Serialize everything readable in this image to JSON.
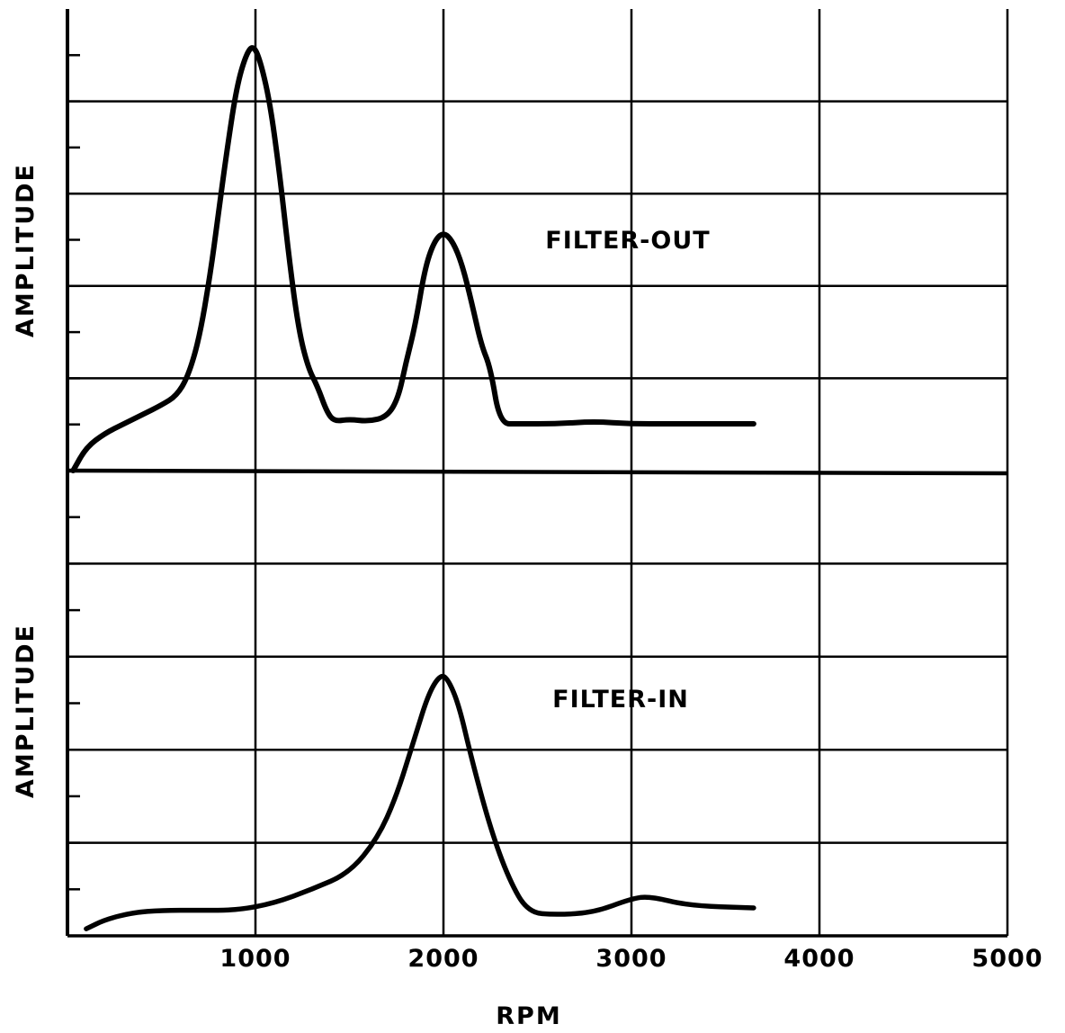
{
  "chart_data": [
    {
      "type": "line",
      "panel": "top",
      "title": "",
      "xlabel": "RPM",
      "ylabel": "AMPLITUDE",
      "xlim": [
        0,
        5000
      ],
      "ylim": [
        0,
        9
      ],
      "grid": true,
      "x_ticks": [
        1000,
        2000,
        3000,
        4000,
        5000
      ],
      "annotation": {
        "text": "FILTER-OUT",
        "x": 2800,
        "y": 5.1
      },
      "series": [
        {
          "name": "",
          "x": [
            30,
            100,
            200,
            300,
            400,
            500,
            580,
            640,
            700,
            760,
            800,
            850,
            900,
            950,
            990,
            1030,
            1080,
            1130,
            1180,
            1230,
            1280,
            1330,
            1380,
            1420,
            1500,
            1600,
            1700,
            1760,
            1800,
            1850,
            1900,
            1950,
            2000,
            2050,
            2100,
            2150,
            2200,
            2250,
            2300,
            2400,
            2600,
            2800,
            3000,
            3200,
            3400,
            3650
          ],
          "y": [
            0.0,
            0.5,
            0.8,
            1.0,
            1.2,
            1.4,
            1.6,
            2.0,
            2.8,
            4.2,
            5.4,
            6.9,
            8.2,
            8.9,
            9.1,
            8.7,
            7.8,
            6.3,
            4.5,
            3.0,
            2.2,
            1.8,
            1.25,
            1.05,
            1.1,
            1.05,
            1.15,
            1.55,
            2.3,
            3.1,
            4.3,
            4.9,
            5.1,
            4.9,
            4.4,
            3.6,
            2.7,
            2.2,
            1.0,
            1.0,
            1.0,
            1.05,
            1.0,
            1.0,
            1.0,
            1.0
          ]
        }
      ]
    },
    {
      "type": "line",
      "panel": "bottom",
      "title": "",
      "xlabel": "RPM",
      "ylabel": "AMPLITUDE",
      "xlim": [
        0,
        5000
      ],
      "ylim": [
        0,
        10
      ],
      "grid": true,
      "x_ticks": [
        1000,
        2000,
        3000,
        4000,
        5000
      ],
      "annotation": {
        "text": "FILTER-IN",
        "x": 2050,
        "y": 5.1
      },
      "series": [
        {
          "name": "",
          "x": [
            100,
            200,
            350,
            500,
            700,
            900,
            1100,
            1300,
            1500,
            1650,
            1750,
            1850,
            1920,
            1980,
            2020,
            2080,
            2150,
            2250,
            2350,
            2450,
            2600,
            2800,
            3000,
            3100,
            3300,
            3650
          ],
          "y": [
            0.15,
            0.35,
            0.5,
            0.55,
            0.55,
            0.55,
            0.7,
            1.0,
            1.35,
            2.1,
            3.0,
            4.3,
            5.2,
            5.6,
            5.55,
            5.0,
            3.8,
            2.3,
            1.2,
            0.5,
            0.45,
            0.5,
            0.8,
            0.85,
            0.65,
            0.6
          ]
        }
      ]
    }
  ]
}
